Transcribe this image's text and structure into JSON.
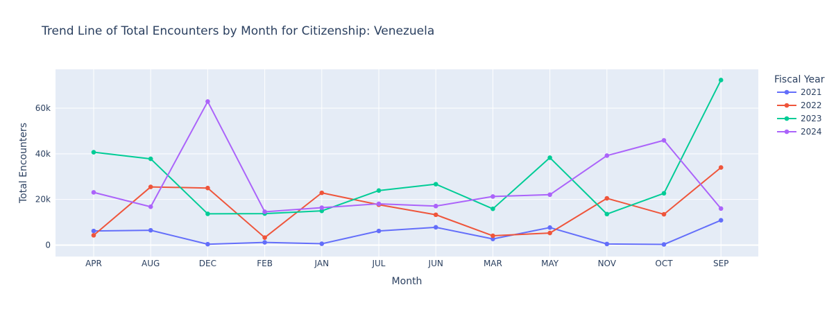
{
  "chart_data": {
    "type": "line",
    "title": "Trend Line of Total Encounters by Month for Citizenship: Venezuela",
    "xlabel": "Month",
    "ylabel": "Total Encounters",
    "categories": [
      "APR",
      "AUG",
      "DEC",
      "FEB",
      "JAN",
      "JUL",
      "JUN",
      "MAR",
      "MAY",
      "NOV",
      "OCT",
      "SEP"
    ],
    "ylim": [
      -5000,
      77000
    ],
    "yticks": [
      0,
      20000,
      40000,
      60000
    ],
    "ytick_labels": [
      "0",
      "20k",
      "40k",
      "60k"
    ],
    "grid": true,
    "legend": {
      "title": "Fiscal Year",
      "placement": "right"
    },
    "series": [
      {
        "name": "2021",
        "color": "#636efa",
        "values": [
          6200,
          6500,
          400,
          1200,
          600,
          6200,
          7800,
          2700,
          7700,
          500,
          300,
          10900
        ]
      },
      {
        "name": "2022",
        "color": "#ef553b",
        "values": [
          4300,
          25500,
          25000,
          3300,
          22900,
          17700,
          13300,
          4100,
          5300,
          20500,
          13500,
          34000
        ]
      },
      {
        "name": "2023",
        "color": "#00cc96",
        "values": [
          40700,
          37800,
          13700,
          13800,
          15000,
          23900,
          26700,
          15900,
          38300,
          13600,
          22700,
          72300
        ]
      },
      {
        "name": "2024",
        "color": "#ab63fa",
        "values": [
          23100,
          16800,
          62900,
          14600,
          16400,
          18100,
          17100,
          21300,
          22100,
          39200,
          45900,
          16000
        ]
      }
    ]
  }
}
